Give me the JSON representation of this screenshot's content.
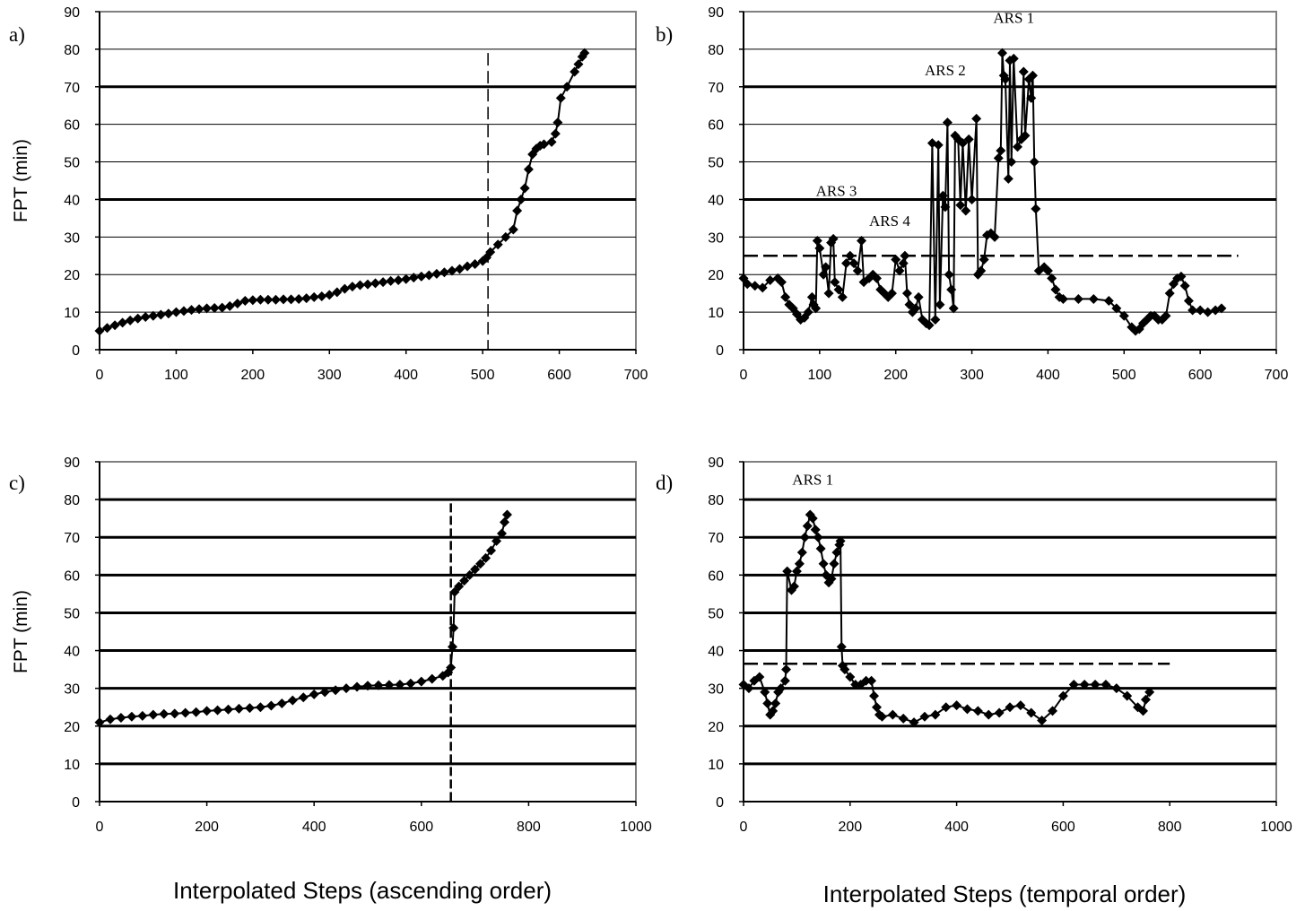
{
  "figure": {
    "xlabel_left": "Interpolated Steps (ascending order)",
    "xlabel_right": "Interpolated Steps (temporal order)"
  },
  "chart_data": [
    {
      "panel": "a)",
      "type": "scatter",
      "ylabel": "FPT (min)",
      "xlim": [
        0,
        700
      ],
      "ylim": [
        0,
        90
      ],
      "xticks": [
        "0",
        "100",
        "200",
        "300",
        "400",
        "500",
        "600",
        "700"
      ],
      "yticks": [
        "0",
        "10",
        "20",
        "30",
        "40",
        "50",
        "60",
        "70",
        "80",
        "90"
      ],
      "thick_gridlines": [
        40,
        70
      ],
      "thin_gridlines": [
        10,
        20,
        30,
        50,
        60,
        80
      ],
      "threshold": {
        "orientation": "vertical",
        "value": 507,
        "range": [
          0,
          79
        ]
      },
      "annotations": [],
      "points": [
        [
          0,
          5
        ],
        [
          10,
          5.8
        ],
        [
          20,
          6.5
        ],
        [
          30,
          7.2
        ],
        [
          40,
          7.8
        ],
        [
          50,
          8.3
        ],
        [
          60,
          8.7
        ],
        [
          70,
          9
        ],
        [
          80,
          9.3
        ],
        [
          90,
          9.6
        ],
        [
          100,
          10
        ],
        [
          110,
          10.3
        ],
        [
          120,
          10.6
        ],
        [
          130,
          10.8
        ],
        [
          140,
          11
        ],
        [
          150,
          11.1
        ],
        [
          160,
          11.2
        ],
        [
          170,
          11.6
        ],
        [
          180,
          12.3
        ],
        [
          190,
          13
        ],
        [
          200,
          13.2
        ],
        [
          210,
          13.3
        ],
        [
          220,
          13.3
        ],
        [
          230,
          13.3
        ],
        [
          240,
          13.4
        ],
        [
          250,
          13.4
        ],
        [
          260,
          13.5
        ],
        [
          270,
          13.7
        ],
        [
          280,
          14
        ],
        [
          290,
          14.2
        ],
        [
          300,
          14.6
        ],
        [
          310,
          15.3
        ],
        [
          320,
          16.2
        ],
        [
          330,
          16.8
        ],
        [
          340,
          17.2
        ],
        [
          350,
          17.4
        ],
        [
          360,
          17.7
        ],
        [
          370,
          18
        ],
        [
          380,
          18.3
        ],
        [
          390,
          18.5
        ],
        [
          400,
          18.8
        ],
        [
          410,
          19.2
        ],
        [
          420,
          19.5
        ],
        [
          430,
          19.8
        ],
        [
          440,
          20.2
        ],
        [
          450,
          20.6
        ],
        [
          460,
          21
        ],
        [
          470,
          21.5
        ],
        [
          480,
          22.2
        ],
        [
          490,
          22.8
        ],
        [
          500,
          23.6
        ],
        [
          505,
          24.5
        ],
        [
          510,
          26
        ],
        [
          520,
          28
        ],
        [
          530,
          30
        ],
        [
          540,
          32
        ],
        [
          545,
          37
        ],
        [
          550,
          40
        ],
        [
          555,
          43
        ],
        [
          560,
          48
        ],
        [
          565,
          52
        ],
        [
          570,
          53.5
        ],
        [
          575,
          54.3
        ],
        [
          580,
          54.7
        ],
        [
          590,
          55.3
        ],
        [
          595,
          57.5
        ],
        [
          598,
          60.5
        ],
        [
          602,
          67
        ],
        [
          610,
          70
        ],
        [
          620,
          74
        ],
        [
          625,
          76
        ],
        [
          630,
          78
        ],
        [
          633,
          79
        ]
      ]
    },
    {
      "panel": "b)",
      "type": "line",
      "ylabel": "",
      "xlim": [
        0,
        700
      ],
      "ylim": [
        0,
        90
      ],
      "xticks": [
        "0",
        "100",
        "200",
        "300",
        "400",
        "500",
        "600",
        "700"
      ],
      "yticks": [
        "0",
        "10",
        "20",
        "30",
        "40",
        "50",
        "60",
        "70",
        "80",
        "90"
      ],
      "thick_gridlines": [
        40,
        70
      ],
      "thin_gridlines": [
        10,
        20,
        30,
        50,
        60,
        80
      ],
      "threshold": {
        "orientation": "horizontal",
        "value": 25,
        "range": [
          0,
          650
        ]
      },
      "annotations": [
        {
          "text": "ARS 1",
          "x": 355,
          "y": 87
        },
        {
          "text": "ARS 2",
          "x": 265,
          "y": 73
        },
        {
          "text": "ARS 3",
          "x": 122,
          "y": 41
        },
        {
          "text": "ARS 4",
          "x": 192,
          "y": 33
        }
      ],
      "points": [
        [
          0,
          19
        ],
        [
          5,
          17.5
        ],
        [
          15,
          17
        ],
        [
          25,
          16.5
        ],
        [
          35,
          18.5
        ],
        [
          45,
          19
        ],
        [
          50,
          18
        ],
        [
          55,
          14
        ],
        [
          60,
          12
        ],
        [
          65,
          11
        ],
        [
          70,
          9.5
        ],
        [
          75,
          8
        ],
        [
          80,
          8.5
        ],
        [
          85,
          10
        ],
        [
          90,
          14
        ],
        [
          92,
          12
        ],
        [
          95,
          11
        ],
        [
          97,
          29
        ],
        [
          100,
          27
        ],
        [
          105,
          20
        ],
        [
          108,
          22
        ],
        [
          112,
          15
        ],
        [
          115,
          28.5
        ],
        [
          118,
          29.5
        ],
        [
          120,
          18
        ],
        [
          125,
          16
        ],
        [
          130,
          14
        ],
        [
          135,
          23
        ],
        [
          140,
          25
        ],
        [
          145,
          23
        ],
        [
          150,
          21
        ],
        [
          155,
          29
        ],
        [
          158,
          18
        ],
        [
          165,
          19
        ],
        [
          170,
          20
        ],
        [
          175,
          19
        ],
        [
          180,
          16
        ],
        [
          185,
          15
        ],
        [
          190,
          14
        ],
        [
          195,
          15
        ],
        [
          200,
          24
        ],
        [
          205,
          21
        ],
        [
          210,
          23
        ],
        [
          212,
          25
        ],
        [
          215,
          15
        ],
        [
          218,
          12
        ],
        [
          222,
          10
        ],
        [
          226,
          11
        ],
        [
          230,
          14
        ],
        [
          235,
          8
        ],
        [
          240,
          7
        ],
        [
          244,
          6.5
        ],
        [
          248,
          55
        ],
        [
          252,
          8
        ],
        [
          256,
          54.5
        ],
        [
          258,
          12
        ],
        [
          262,
          41
        ],
        [
          265,
          38
        ],
        [
          268,
          60.5
        ],
        [
          270,
          20
        ],
        [
          273,
          16
        ],
        [
          276,
          11
        ],
        [
          278,
          57
        ],
        [
          282,
          56
        ],
        [
          285,
          38.5
        ],
        [
          288,
          55
        ],
        [
          292,
          37
        ],
        [
          296,
          56
        ],
        [
          300,
          40
        ],
        [
          306,
          61.5
        ],
        [
          308,
          20
        ],
        [
          312,
          21
        ],
        [
          316,
          24
        ],
        [
          320,
          30.5
        ],
        [
          325,
          31
        ],
        [
          330,
          30
        ],
        [
          335,
          51
        ],
        [
          338,
          53
        ],
        [
          340,
          79
        ],
        [
          342,
          73
        ],
        [
          344,
          72
        ],
        [
          348,
          45.5
        ],
        [
          350,
          77
        ],
        [
          352,
          50
        ],
        [
          355,
          77.5
        ],
        [
          360,
          54
        ],
        [
          365,
          56
        ],
        [
          368,
          74
        ],
        [
          370,
          57
        ],
        [
          375,
          72
        ],
        [
          378,
          67
        ],
        [
          380,
          73
        ],
        [
          382,
          50
        ],
        [
          384,
          37.5
        ],
        [
          388,
          21
        ],
        [
          395,
          22
        ],
        [
          400,
          21
        ],
        [
          405,
          19
        ],
        [
          410,
          16
        ],
        [
          415,
          14
        ],
        [
          420,
          13.5
        ],
        [
          440,
          13.5
        ],
        [
          460,
          13.5
        ],
        [
          480,
          13
        ],
        [
          490,
          11
        ],
        [
          500,
          9
        ],
        [
          510,
          6
        ],
        [
          515,
          5
        ],
        [
          520,
          5.5
        ],
        [
          525,
          7
        ],
        [
          530,
          8
        ],
        [
          535,
          9
        ],
        [
          540,
          9
        ],
        [
          545,
          8
        ],
        [
          550,
          8
        ],
        [
          555,
          9
        ],
        [
          560,
          15
        ],
        [
          565,
          17.5
        ],
        [
          570,
          19
        ],
        [
          575,
          19.5
        ],
        [
          580,
          17
        ],
        [
          585,
          13
        ],
        [
          590,
          10.5
        ],
        [
          600,
          10.5
        ],
        [
          610,
          10
        ],
        [
          620,
          10.5
        ],
        [
          628,
          11
        ]
      ]
    },
    {
      "panel": "c)",
      "type": "scatter",
      "ylabel": "FPT (min)",
      "xlim": [
        0,
        1000
      ],
      "ylim": [
        0,
        90
      ],
      "xticks": [
        "0",
        "200",
        "400",
        "600",
        "800",
        "1000"
      ],
      "yticks": [
        "0",
        "10",
        "20",
        "30",
        "40",
        "50",
        "60",
        "70",
        "80",
        "90"
      ],
      "thick_gridlines": [
        10,
        20,
        30,
        40,
        50,
        60,
        70,
        80
      ],
      "thin_gridlines": [],
      "threshold": {
        "orientation": "vertical",
        "value": 655,
        "range": [
          0,
          79
        ]
      },
      "annotations": [],
      "points": [
        [
          0,
          21
        ],
        [
          20,
          21.8
        ],
        [
          40,
          22.2
        ],
        [
          60,
          22.5
        ],
        [
          80,
          22.7
        ],
        [
          100,
          23
        ],
        [
          120,
          23.2
        ],
        [
          140,
          23.3
        ],
        [
          160,
          23.5
        ],
        [
          180,
          23.7
        ],
        [
          200,
          24
        ],
        [
          220,
          24.2
        ],
        [
          240,
          24.4
        ],
        [
          260,
          24.6
        ],
        [
          280,
          24.8
        ],
        [
          300,
          25
        ],
        [
          320,
          25.4
        ],
        [
          340,
          26
        ],
        [
          360,
          26.8
        ],
        [
          380,
          27.6
        ],
        [
          400,
          28.4
        ],
        [
          420,
          29
        ],
        [
          440,
          29.5
        ],
        [
          460,
          30
        ],
        [
          480,
          30.4
        ],
        [
          500,
          30.7
        ],
        [
          520,
          30.8
        ],
        [
          540,
          30.9
        ],
        [
          560,
          31
        ],
        [
          580,
          31.3
        ],
        [
          600,
          31.8
        ],
        [
          620,
          32.5
        ],
        [
          640,
          33.3
        ],
        [
          650,
          34.2
        ],
        [
          655,
          35.5
        ],
        [
          658,
          41
        ],
        [
          660,
          46
        ],
        [
          662,
          55.5
        ],
        [
          670,
          57
        ],
        [
          680,
          58.5
        ],
        [
          690,
          60
        ],
        [
          700,
          61.5
        ],
        [
          710,
          63
        ],
        [
          720,
          64.5
        ],
        [
          730,
          66.5
        ],
        [
          740,
          69
        ],
        [
          750,
          71
        ],
        [
          755,
          74
        ],
        [
          760,
          76
        ]
      ]
    },
    {
      "panel": "d)",
      "type": "line",
      "ylabel": "",
      "xlim": [
        0,
        1000
      ],
      "ylim": [
        0,
        90
      ],
      "xticks": [
        "0",
        "200",
        "400",
        "600",
        "800",
        "1000"
      ],
      "yticks": [
        "0",
        "10",
        "20",
        "30",
        "40",
        "50",
        "60",
        "70",
        "80",
        "90"
      ],
      "thick_gridlines": [
        10,
        20,
        30,
        40,
        50,
        60,
        70,
        80
      ],
      "thin_gridlines": [],
      "threshold": {
        "orientation": "horizontal",
        "value": 36.5,
        "range": [
          0,
          800
        ]
      },
      "annotations": [
        {
          "text": "ARS 1",
          "x": 130,
          "y": 84
        }
      ],
      "points": [
        [
          0,
          31
        ],
        [
          10,
          30
        ],
        [
          20,
          32
        ],
        [
          30,
          33
        ],
        [
          40,
          29
        ],
        [
          45,
          26
        ],
        [
          50,
          23
        ],
        [
          55,
          24
        ],
        [
          60,
          26
        ],
        [
          65,
          29
        ],
        [
          70,
          30
        ],
        [
          78,
          32
        ],
        [
          80,
          35
        ],
        [
          82,
          61
        ],
        [
          90,
          56
        ],
        [
          95,
          57
        ],
        [
          100,
          61
        ],
        [
          105,
          63
        ],
        [
          110,
          66
        ],
        [
          115,
          70
        ],
        [
          120,
          73
        ],
        [
          125,
          76
        ],
        [
          130,
          75
        ],
        [
          135,
          72
        ],
        [
          140,
          70
        ],
        [
          145,
          67
        ],
        [
          150,
          63
        ],
        [
          155,
          60
        ],
        [
          160,
          58
        ],
        [
          165,
          59
        ],
        [
          170,
          63
        ],
        [
          175,
          66
        ],
        [
          180,
          68
        ],
        [
          182,
          69
        ],
        [
          184,
          41
        ],
        [
          186,
          36
        ],
        [
          190,
          35
        ],
        [
          200,
          33
        ],
        [
          210,
          31
        ],
        [
          220,
          31
        ],
        [
          230,
          32
        ],
        [
          240,
          32
        ],
        [
          245,
          28
        ],
        [
          250,
          25
        ],
        [
          255,
          23
        ],
        [
          260,
          22.5
        ],
        [
          280,
          23
        ],
        [
          300,
          22
        ],
        [
          320,
          21
        ],
        [
          340,
          22.5
        ],
        [
          360,
          23
        ],
        [
          380,
          25
        ],
        [
          400,
          25.5
        ],
        [
          420,
          24.5
        ],
        [
          440,
          24
        ],
        [
          460,
          23
        ],
        [
          480,
          23.5
        ],
        [
          500,
          25
        ],
        [
          520,
          25.5
        ],
        [
          540,
          23.5
        ],
        [
          560,
          21.5
        ],
        [
          580,
          24
        ],
        [
          600,
          28
        ],
        [
          620,
          31
        ],
        [
          640,
          31
        ],
        [
          660,
          31
        ],
        [
          680,
          31
        ],
        [
          700,
          30
        ],
        [
          720,
          28
        ],
        [
          740,
          25
        ],
        [
          750,
          24
        ],
        [
          755,
          27
        ],
        [
          762,
          29
        ]
      ]
    }
  ]
}
